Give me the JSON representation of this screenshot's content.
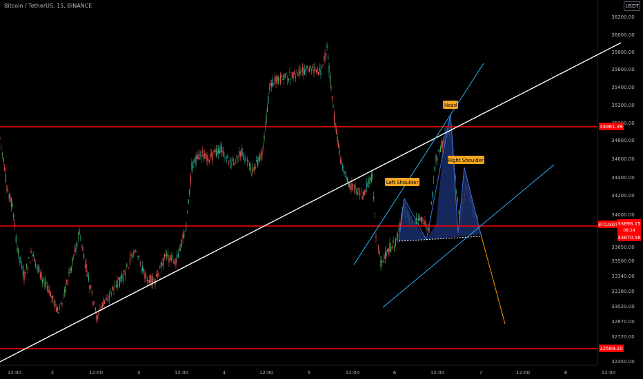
{
  "title": "Bitcoin / TetherUS, 15, BINANCE",
  "currency": "USDT",
  "price_ticks": [
    "36200.00",
    "36000.00",
    "35800.00",
    "35600.00",
    "35400.00",
    "35200.00",
    "35000.00",
    "34800.00",
    "34600.00",
    "34400.00",
    "34200.00",
    "34000.00",
    "33650.00",
    "33500.00",
    "33340.00",
    "33180.00",
    "33020.00",
    "32870.00",
    "32720.00",
    "32450.00"
  ],
  "time_ticks": [
    "12:00",
    "2",
    "12:00",
    "3",
    "12:00",
    "4",
    "12:00",
    "5",
    "12:00",
    "6",
    "12:00",
    "7",
    "12:00",
    "8",
    "12:00"
  ],
  "pattern_labels": {
    "head": "Head",
    "left_shoulder": "Left Shoulder",
    "right_shoulder": "Right Shoulder"
  },
  "level_labels": {
    "resistance": "34961.39",
    "support": "32589.20"
  },
  "price_badge": {
    "symbol": "BTCUSDT",
    "price": "33896.15",
    "countdown": "08:24",
    "neckline": "33870.56"
  },
  "colors": {
    "up": "#26a69a",
    "up_green": "#4caf50",
    "down": "#ef5350",
    "level": "#ff0000",
    "trend": "#ffffff",
    "channel": "#29b6f6",
    "projection": "#ff9800",
    "pattern_fill": "#1a2f6b"
  }
}
